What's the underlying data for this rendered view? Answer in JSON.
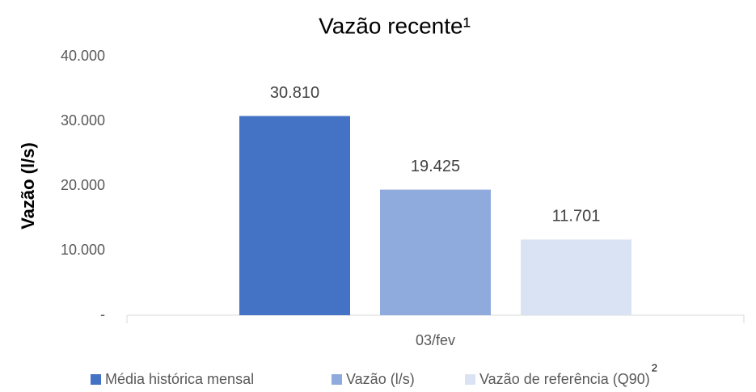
{
  "chart_data": {
    "type": "bar",
    "title": "Vazão recente¹",
    "y_label": "Vazão (l/s)",
    "categories": [
      "03/fev"
    ],
    "series": [
      {
        "name": "Média histórica mensal",
        "color": "#4472c4",
        "values": [
          30810
        ],
        "value_labels": [
          "30.810"
        ]
      },
      {
        "name": "Vazão (l/s)",
        "color": "#8faadc",
        "values": [
          19425
        ],
        "value_labels": [
          "19.425"
        ]
      },
      {
        "name": "Vazão de referência (Q90)",
        "color": "#dae3f3",
        "values": [
          11701
        ],
        "value_labels": [
          "11.701"
        ]
      }
    ],
    "legend_superscript": "2",
    "ylim": [
      0,
      40000
    ],
    "yticks": [
      {
        "value": 0,
        "label": "-"
      },
      {
        "value": 10000,
        "label": "10.000"
      },
      {
        "value": 20000,
        "label": "20.000"
      },
      {
        "value": 30000,
        "label": "30.000"
      },
      {
        "value": 40000,
        "label": "40.000"
      }
    ],
    "grid": false,
    "legend": "bottom"
  }
}
